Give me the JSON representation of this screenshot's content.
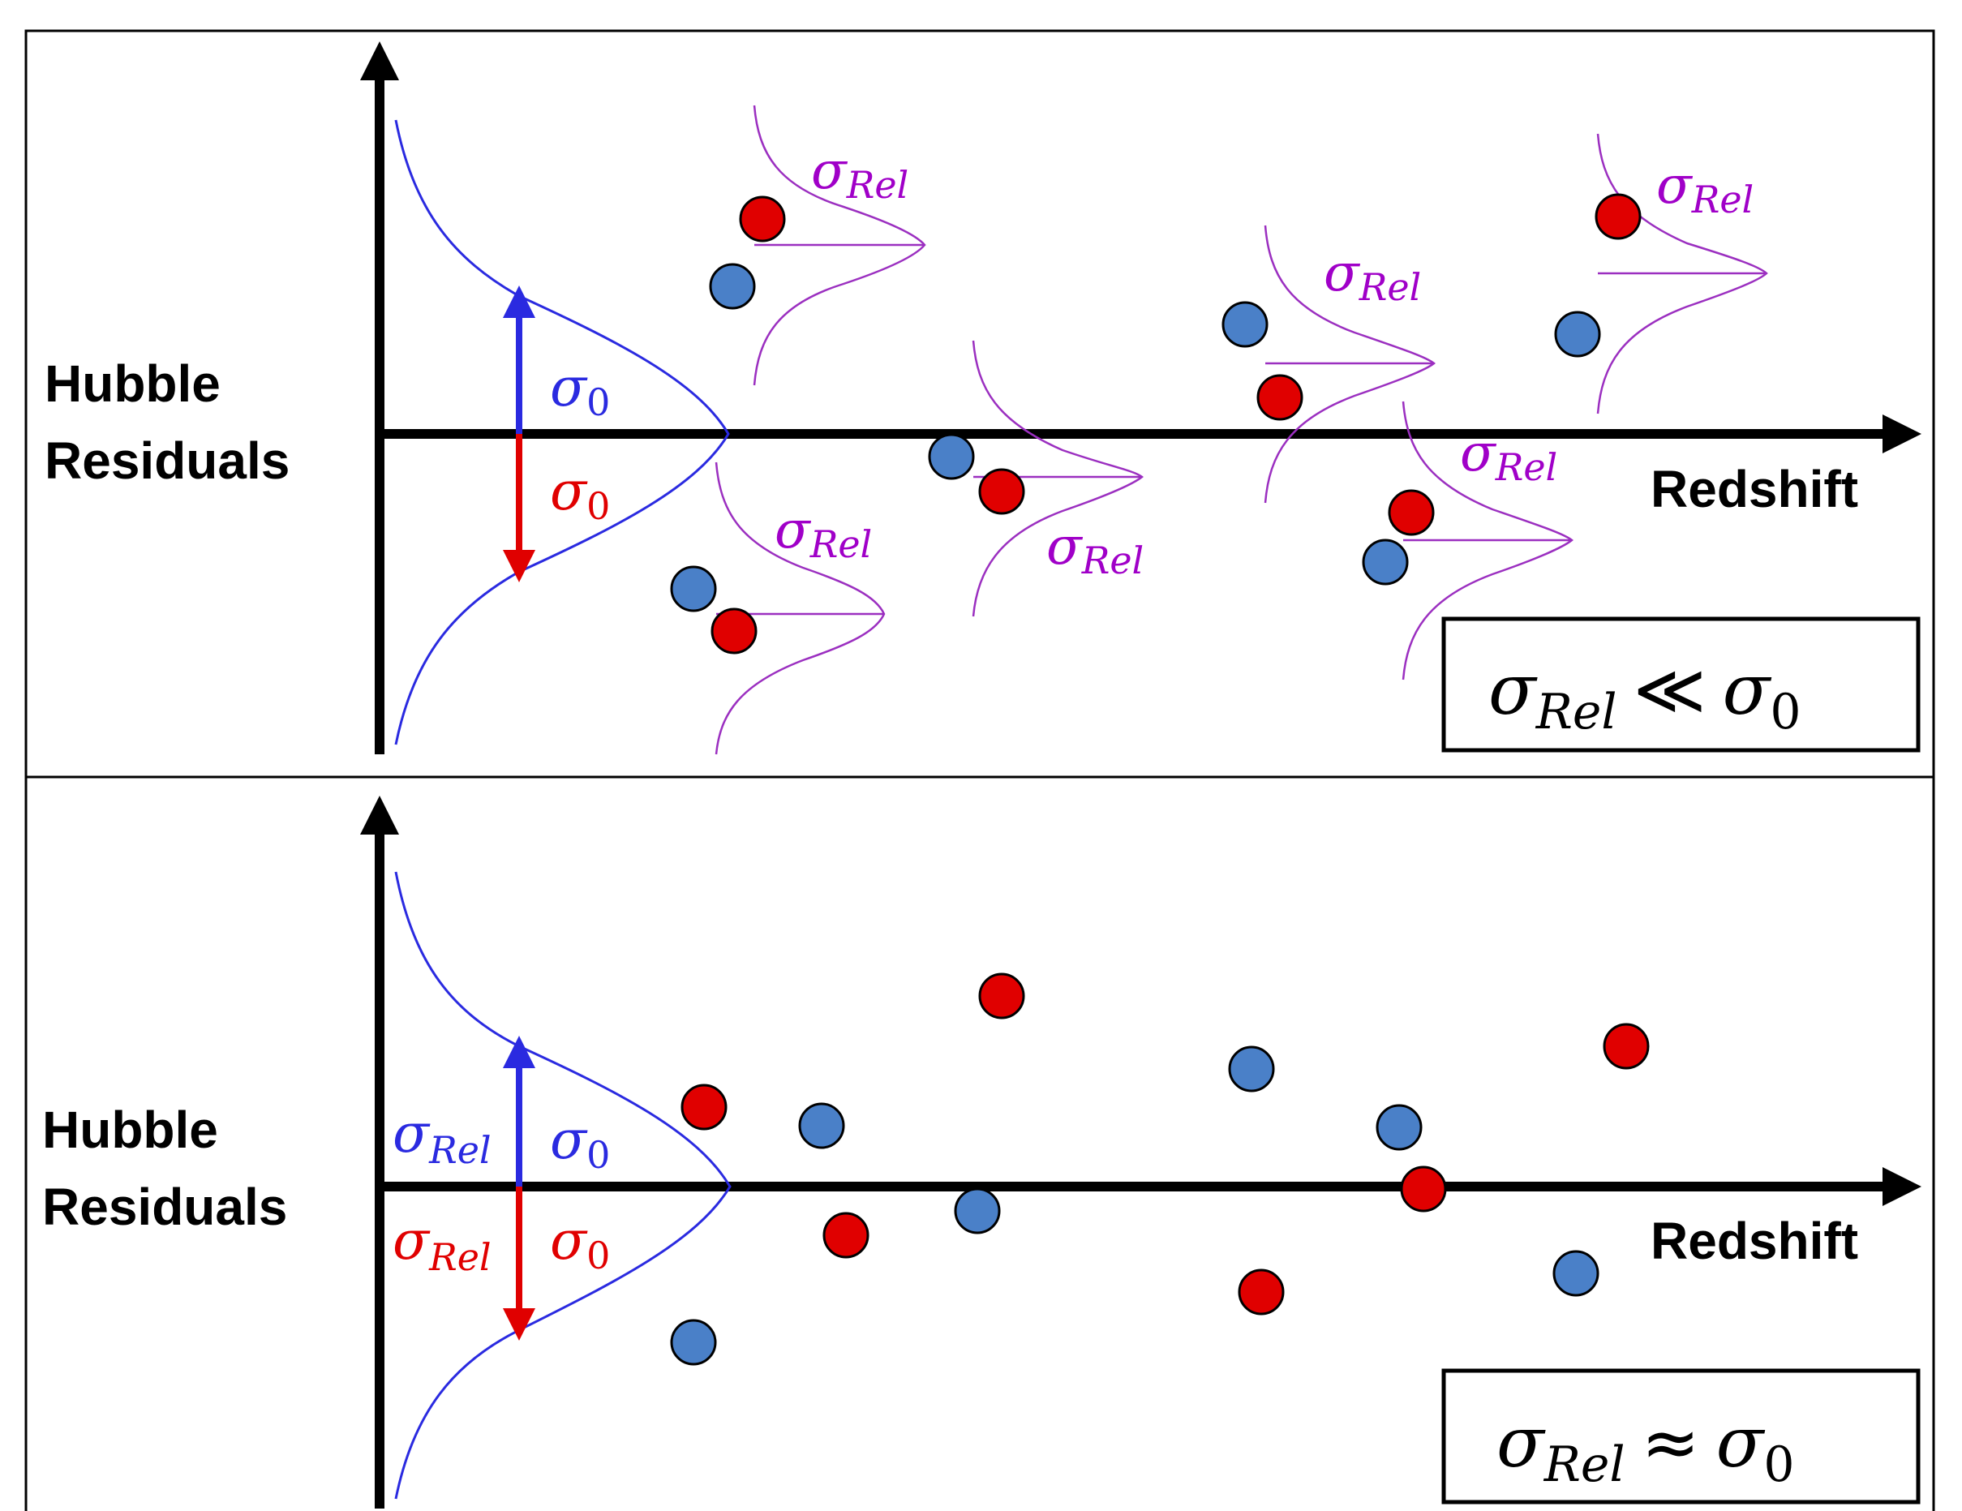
{
  "panels": [
    {
      "y_axis_label_line1": "Hubble",
      "y_axis_label_line2": "Residuals",
      "x_axis_label": "Redshift",
      "sigma_symbol": "σ",
      "sigma0_subscript": "0",
      "sigma_rel_subscript": "Rel",
      "relation_symbol": "≪",
      "relation_text": "σRel ≪ σ0",
      "arrow_up_color": "#2a2ae0",
      "arrow_down_color": "#e00000"
    },
    {
      "y_axis_label_line1": "Hubble",
      "y_axis_label_line2": "Residuals",
      "x_axis_label": "Redshift",
      "sigma_symbol": "σ",
      "sigma0_subscript": "0",
      "sigma_rel_subscript": "Rel",
      "relation_symbol": "≈",
      "relation_text": "σRel ≈ σ0",
      "arrow_up_color": "#2a2ae0",
      "arrow_down_color": "#e00000"
    }
  ],
  "colors": {
    "red_point": "#e00000",
    "blue_point": "#4a80c8",
    "gaussian_main": "#2a2ae0",
    "gaussian_rel": "#9b2fc0",
    "label_rel": "#a000c8"
  }
}
